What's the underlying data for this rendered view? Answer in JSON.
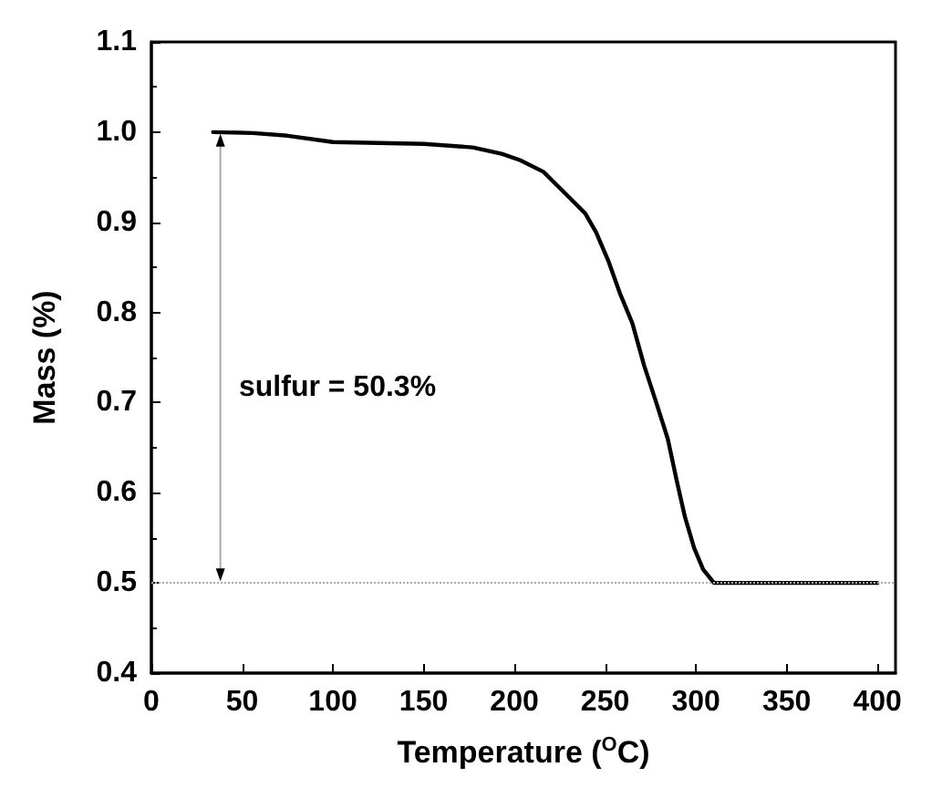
{
  "chart_data": {
    "type": "line",
    "xlabel": "Temperature ($^{O}$C)",
    "ylabel": "Mass (%)",
    "annotations": [
      "sulfur = 50.3%"
    ],
    "series": [
      {
        "color": "#000000",
        "x": [
          34,
          56,
          75,
          100,
          150,
          177,
          193,
          203,
          216,
          229,
          239,
          245,
          252,
          258,
          265,
          271.5,
          278,
          284.5,
          289.5,
          294,
          299,
          304,
          310,
          400
        ],
        "values": [
          1.0,
          0.999,
          0.996,
          0.989,
          0.987,
          0.983,
          0.976,
          0.969,
          0.956,
          0.93,
          0.91,
          0.889,
          0.856,
          0.822,
          0.788,
          0.741,
          0.701,
          0.66,
          0.613,
          0.573,
          0.539,
          0.515,
          0.5,
          0.5
        ]
      }
    ],
    "xlim": [
      0,
      410
    ],
    "xticks": [
      0,
      50,
      100,
      150,
      200,
      250,
      300,
      350,
      400
    ],
    "ylim": [
      0.4,
      1.1
    ],
    "yticks": [
      0.4,
      0.5,
      0.6,
      0.7,
      0.8,
      0.9,
      {
        "value": 1,
        "label": "1.0"
      },
      1.1
    ],
    "ref_lines": [
      {
        "axis": "y",
        "value": 0.5,
        "color": "#aaaaaa",
        "line_style": "dotted"
      }
    ],
    "grid": false,
    "marker": "none",
    "line_style": "solid"
  }
}
